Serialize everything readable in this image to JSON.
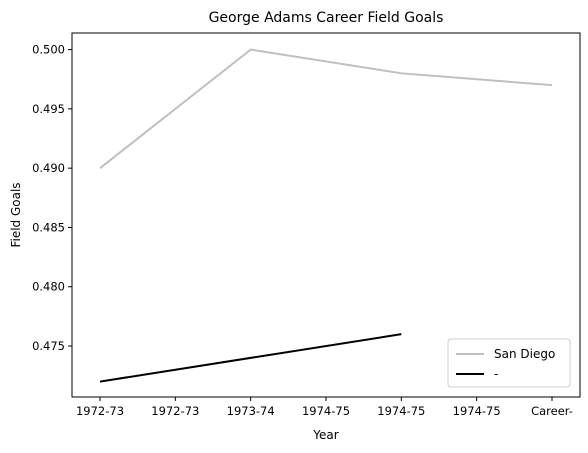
{
  "chart_data": {
    "type": "line",
    "title": "George Adams  Career Field Goals",
    "xlabel": "Year",
    "ylabel": "Field Goals",
    "categories": [
      "1972-73",
      "1972-73",
      "1973-74",
      "1974-75",
      "1974-75",
      "1974-75",
      "Career-"
    ],
    "ylim": [
      0.4707,
      0.5014
    ],
    "yticks": [
      0.475,
      0.48,
      0.485,
      0.49,
      0.495,
      0.5
    ],
    "series": [
      {
        "name": "San Diego",
        "color": "#bfbfbf",
        "points": [
          [
            0,
            0.49
          ],
          [
            2,
            0.5
          ],
          [
            4,
            0.498
          ],
          [
            6,
            0.497
          ]
        ]
      },
      {
        "name": "-",
        "color": "#000000",
        "points": [
          [
            0,
            0.472
          ],
          [
            4,
            0.476
          ]
        ]
      }
    ],
    "legend": "lower-right",
    "grid": false
  }
}
